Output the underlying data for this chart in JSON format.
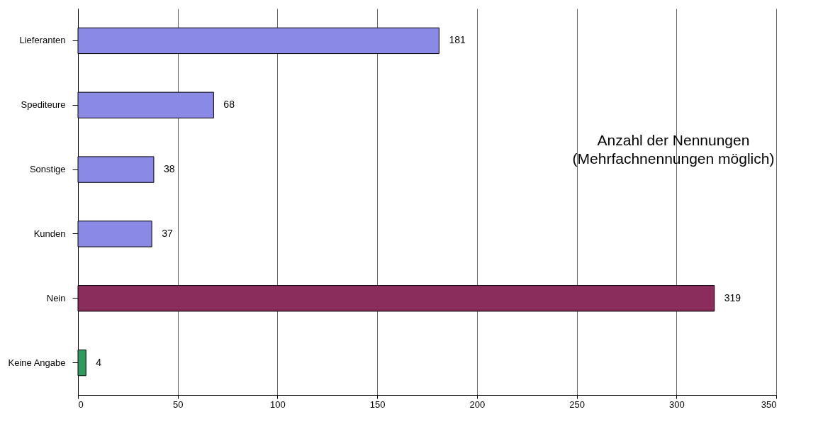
{
  "chart_data": {
    "type": "bar",
    "orientation": "horizontal",
    "categories": [
      "Lieferanten",
      "Spediteure",
      "Sonstige",
      "Kunden",
      "Nein",
      "Keine Angabe"
    ],
    "values": [
      181,
      68,
      38,
      37,
      319,
      4
    ],
    "colors": [
      "#8a8ae6",
      "#8a8ae6",
      "#8a8ae6",
      "#8a8ae6",
      "#8a2c5c",
      "#2e9a5e"
    ],
    "xlim": [
      0,
      350
    ],
    "xticks": [
      0,
      50,
      100,
      150,
      200,
      250,
      300,
      350
    ],
    "grid": "x",
    "data_labels": true,
    "annotations": [
      "Anzahl der Nennungen",
      "(Mehrfachnennungen möglich)"
    ]
  }
}
